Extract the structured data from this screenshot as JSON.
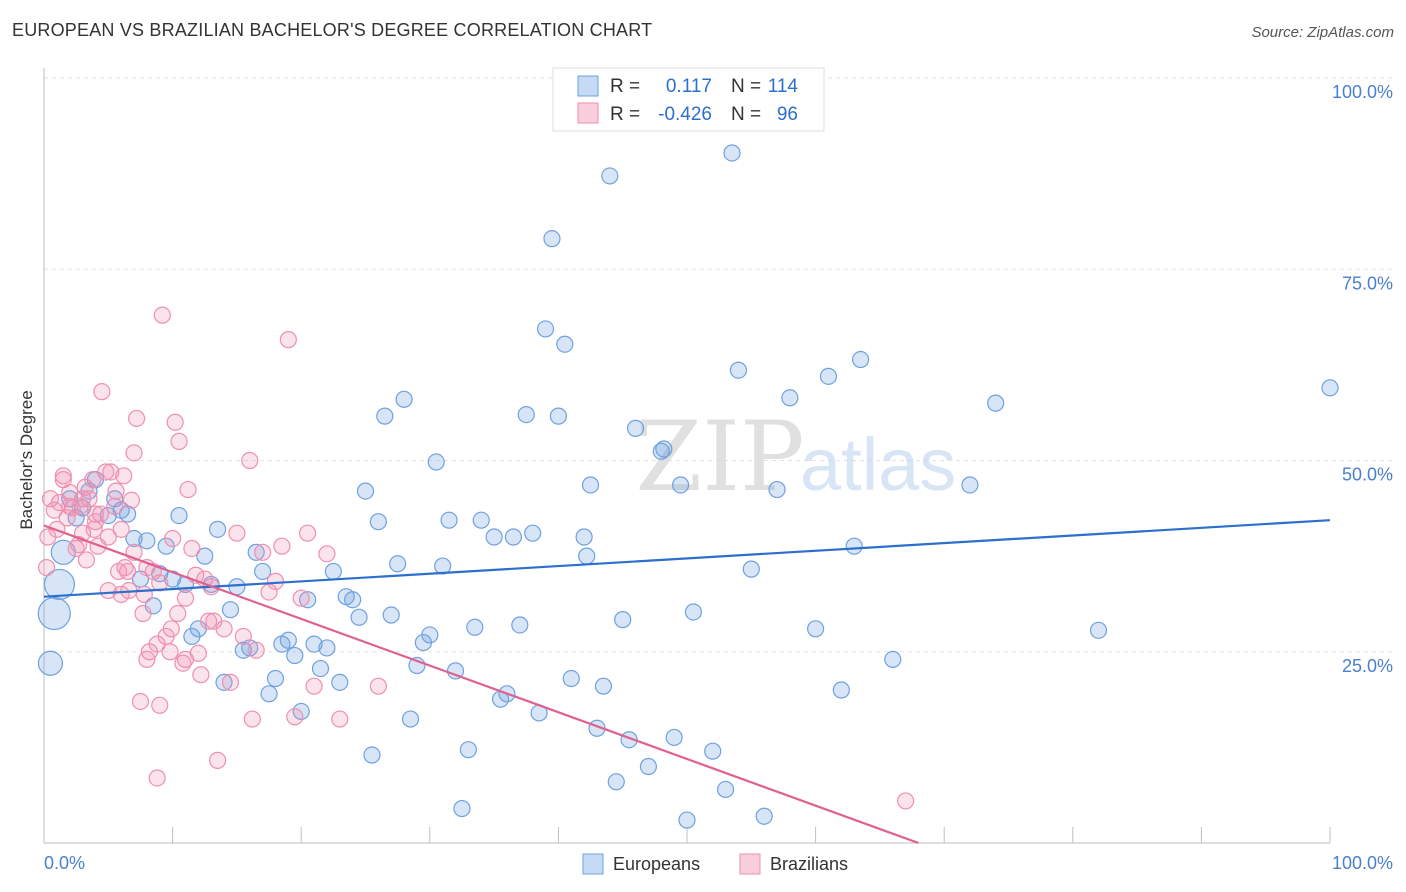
{
  "header": {
    "title": "EUROPEAN VS BRAZILIAN BACHELOR'S DEGREE CORRELATION CHART",
    "source": "Source: ZipAtlas.com"
  },
  "watermark": {
    "part1": "ZIP",
    "part2": "atlas"
  },
  "stats": {
    "europeans": {
      "r_label": "R =",
      "r_value": "0.117",
      "n_label": "N =",
      "n_value": "114"
    },
    "brazilians": {
      "r_label": "R =",
      "r_value": "-0.426",
      "n_label": "N =",
      "n_value": "96"
    }
  },
  "colors": {
    "europeans": "#6fa1e0",
    "europeans_line": "#2c6fcc",
    "brazilians": "#ef8fb1",
    "brazilians_line": "#e0608f",
    "axis_text": "#4a7fcf"
  },
  "chart_data": {
    "type": "scatter",
    "title": "EUROPEAN VS BRAZILIAN BACHELOR'S DEGREE CORRELATION CHART",
    "xlabel": "",
    "ylabel": "Bachelor's Degree",
    "xlim": [
      0,
      100
    ],
    "ylim": [
      0,
      100
    ],
    "x_tick_labels": [
      "0.0%",
      "100.0%"
    ],
    "y_tick_values": [
      25,
      50,
      75,
      100
    ],
    "y_tick_labels": [
      "25.0%",
      "50.0%",
      "75.0%",
      "100.0%"
    ],
    "grid": true,
    "legend_position": "bottom-center",
    "series": [
      {
        "name": "Europeans",
        "trend": {
          "x": [
            0,
            100
          ],
          "y": [
            32.2,
            42.2
          ]
        },
        "points": [
          [
            0.5,
            23.5
          ],
          [
            0.8,
            30
          ],
          [
            1.2,
            33.8
          ],
          [
            1.5,
            38
          ],
          [
            2,
            45
          ],
          [
            2.5,
            42.5
          ],
          [
            3,
            43.8
          ],
          [
            3.5,
            46
          ],
          [
            4,
            47.5
          ],
          [
            5,
            42.8
          ],
          [
            5.5,
            45
          ],
          [
            6,
            43.5
          ],
          [
            6.5,
            43
          ],
          [
            7,
            39.8
          ],
          [
            7.5,
            34.5
          ],
          [
            8,
            39.5
          ],
          [
            8.5,
            31
          ],
          [
            9,
            35.2
          ],
          [
            9.5,
            38.8
          ],
          [
            10,
            34.5
          ],
          [
            10.5,
            42.8
          ],
          [
            11,
            33.8
          ],
          [
            11.5,
            27
          ],
          [
            12,
            28
          ],
          [
            12.5,
            37.5
          ],
          [
            13,
            33.8
          ],
          [
            13.5,
            41
          ],
          [
            14,
            21
          ],
          [
            14.5,
            30.5
          ],
          [
            15,
            33.5
          ],
          [
            15.5,
            25.2
          ],
          [
            16,
            25.5
          ],
          [
            16.5,
            38
          ],
          [
            17,
            35.5
          ],
          [
            17.5,
            19.5
          ],
          [
            18,
            21.5
          ],
          [
            18.5,
            26
          ],
          [
            19,
            26.5
          ],
          [
            19.5,
            24.5
          ],
          [
            20,
            17.2
          ],
          [
            20.5,
            31.8
          ],
          [
            21,
            26
          ],
          [
            21.5,
            22.8
          ],
          [
            22,
            25.5
          ],
          [
            22.5,
            35.5
          ],
          [
            23,
            21
          ],
          [
            23.5,
            32.2
          ],
          [
            24,
            31.8
          ],
          [
            24.5,
            29.5
          ],
          [
            25,
            46
          ],
          [
            25.5,
            11.5
          ],
          [
            26,
            42
          ],
          [
            26.5,
            55.8
          ],
          [
            27,
            29.8
          ],
          [
            27.5,
            36.5
          ],
          [
            28,
            58
          ],
          [
            28.5,
            16.2
          ],
          [
            29,
            23.2
          ],
          [
            29.5,
            26.2
          ],
          [
            30,
            27.2
          ],
          [
            30.5,
            49.8
          ],
          [
            31,
            36.2
          ],
          [
            31.5,
            42.2
          ],
          [
            32,
            22.5
          ],
          [
            32.5,
            4.5
          ],
          [
            33,
            12.2
          ],
          [
            33.5,
            28.2
          ],
          [
            34,
            42.2
          ],
          [
            35,
            40
          ],
          [
            35.5,
            18.8
          ],
          [
            36,
            19.5
          ],
          [
            36.5,
            40
          ],
          [
            37,
            28.5
          ],
          [
            37.5,
            56
          ],
          [
            38,
            40.5
          ],
          [
            38.5,
            17
          ],
          [
            39,
            67.2
          ],
          [
            39.5,
            79
          ],
          [
            40,
            55.8
          ],
          [
            40.5,
            65.2
          ],
          [
            41,
            21.5
          ],
          [
            42,
            40
          ],
          [
            42.2,
            37.5
          ],
          [
            42.5,
            46.8
          ],
          [
            43,
            15
          ],
          [
            43.5,
            20.5
          ],
          [
            44,
            87.2
          ],
          [
            44.5,
            8
          ],
          [
            45,
            29.2
          ],
          [
            45.5,
            13.5
          ],
          [
            46,
            54.2
          ],
          [
            47,
            10
          ],
          [
            48,
            51.2
          ],
          [
            48.2,
            51.5
          ],
          [
            49,
            13.8
          ],
          [
            49.5,
            46.8
          ],
          [
            50,
            3
          ],
          [
            50.5,
            30.2
          ],
          [
            52,
            12
          ],
          [
            53,
            7
          ],
          [
            53.5,
            90.2
          ],
          [
            54,
            61.8
          ],
          [
            55,
            35.8
          ],
          [
            56,
            3.5
          ],
          [
            57,
            46.2
          ],
          [
            58,
            58.2
          ],
          [
            60,
            28
          ],
          [
            61,
            61
          ],
          [
            62,
            20
          ],
          [
            63,
            38.8
          ],
          [
            63.5,
            63.2
          ],
          [
            66,
            24
          ],
          [
            72,
            46.8
          ],
          [
            74,
            57.5
          ],
          [
            82,
            27.8
          ],
          [
            100,
            59.5
          ]
        ]
      },
      {
        "name": "Brazilians",
        "trend": {
          "x": [
            0,
            68
          ],
          "y": [
            41.5,
            0
          ]
        },
        "points": [
          [
            0.2,
            36
          ],
          [
            0.5,
            45
          ],
          [
            0.8,
            43.5
          ],
          [
            1,
            41
          ],
          [
            1.2,
            44.5
          ],
          [
            1.5,
            47.5
          ],
          [
            1.8,
            42.5
          ],
          [
            2,
            45.8
          ],
          [
            2.2,
            43.8
          ],
          [
            2.5,
            38.5
          ],
          [
            2.8,
            44
          ],
          [
            3,
            40.5
          ],
          [
            3.2,
            46.5
          ],
          [
            3.5,
            45
          ],
          [
            3.8,
            47.5
          ],
          [
            4,
            42
          ],
          [
            4.2,
            38.8
          ],
          [
            4.5,
            59
          ],
          [
            4.8,
            48.5
          ],
          [
            5,
            33
          ],
          [
            5.2,
            48.5
          ],
          [
            5.5,
            44
          ],
          [
            5.8,
            35.5
          ],
          [
            6,
            32.5
          ],
          [
            6.2,
            48
          ],
          [
            6.5,
            35.5
          ],
          [
            6.8,
            44.8
          ],
          [
            7,
            51
          ],
          [
            7.2,
            55.5
          ],
          [
            7.5,
            18.5
          ],
          [
            7.8,
            32.5
          ],
          [
            8,
            24
          ],
          [
            8.2,
            25
          ],
          [
            8.5,
            35.5
          ],
          [
            8.8,
            8.5
          ],
          [
            9,
            18
          ],
          [
            9.2,
            69
          ],
          [
            9.5,
            27
          ],
          [
            9.8,
            25
          ],
          [
            10,
            39.8
          ],
          [
            10.2,
            55
          ],
          [
            10.5,
            52.5
          ],
          [
            10.8,
            23.5
          ],
          [
            11,
            32
          ],
          [
            11.2,
            46.2
          ],
          [
            11.5,
            38.5
          ],
          [
            11.8,
            35
          ],
          [
            12,
            24.8
          ],
          [
            12.5,
            34.5
          ],
          [
            12.8,
            29
          ],
          [
            13,
            33.5
          ],
          [
            13.5,
            10.8
          ],
          [
            14,
            28
          ],
          [
            14.5,
            21
          ],
          [
            15,
            40.5
          ],
          [
            15.5,
            27
          ],
          [
            16,
            50
          ],
          [
            16.2,
            16.2
          ],
          [
            16.5,
            25.2
          ],
          [
            17,
            38
          ],
          [
            17.5,
            32.8
          ],
          [
            18,
            34.2
          ],
          [
            18.5,
            38.8
          ],
          [
            19,
            65.8
          ],
          [
            19.5,
            16.5
          ],
          [
            20,
            32
          ],
          [
            20.5,
            40.5
          ],
          [
            21,
            20.5
          ],
          [
            22,
            37.8
          ],
          [
            23,
            16.2
          ],
          [
            26,
            20.5
          ],
          [
            4,
            43
          ],
          [
            3,
            45
          ],
          [
            2,
            44
          ],
          [
            5,
            40
          ],
          [
            6,
            41
          ],
          [
            7,
            38
          ],
          [
            8,
            36
          ],
          [
            9,
            34
          ],
          [
            1.5,
            48
          ],
          [
            2.7,
            39
          ],
          [
            3.3,
            37
          ],
          [
            4.4,
            43
          ],
          [
            5.6,
            46
          ],
          [
            6.6,
            33
          ],
          [
            7.7,
            30
          ],
          [
            8.8,
            26
          ],
          [
            9.9,
            28
          ],
          [
            11,
            24
          ],
          [
            12.2,
            22
          ],
          [
            3.9,
            41
          ],
          [
            6.3,
            36
          ],
          [
            10.4,
            30
          ],
          [
            13.2,
            29
          ],
          [
            67,
            5.5
          ],
          [
            0.3,
            40
          ]
        ]
      }
    ]
  },
  "legend": {
    "europeans": "Europeans",
    "brazilians": "Brazilians"
  }
}
